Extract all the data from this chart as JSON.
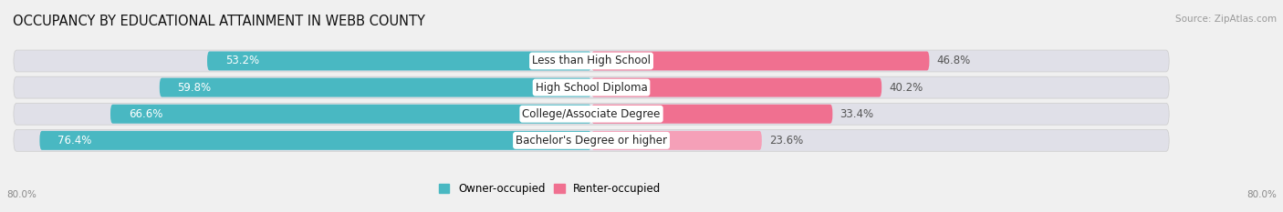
{
  "title": "OCCUPANCY BY EDUCATIONAL ATTAINMENT IN WEBB COUNTY",
  "source": "Source: ZipAtlas.com",
  "categories": [
    "Less than High School",
    "High School Diploma",
    "College/Associate Degree",
    "Bachelor's Degree or higher"
  ],
  "owner_values": [
    53.2,
    59.8,
    66.6,
    76.4
  ],
  "renter_values": [
    46.8,
    40.2,
    33.4,
    23.6
  ],
  "owner_color": "#49b8c2",
  "renter_color": "#f07090",
  "renter_light_color": "#f5a0b8",
  "owner_label": "Owner-occupied",
  "renter_label": "Renter-occupied",
  "axis_label_left": "80.0%",
  "axis_label_right": "80.0%",
  "x_max": 80.0,
  "background_color": "#f0f0f0",
  "bar_track_color": "#e0e0e8",
  "title_fontsize": 10.5,
  "source_fontsize": 7.5,
  "label_fontsize": 8.5,
  "value_fontsize": 8.5
}
